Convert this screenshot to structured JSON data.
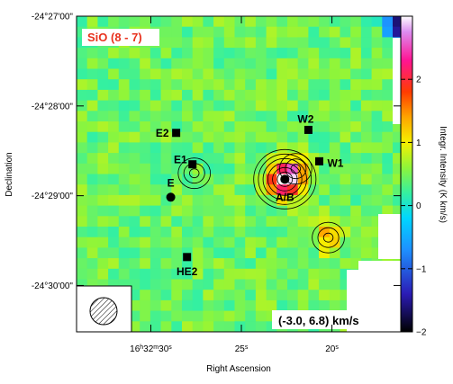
{
  "chart_data": {
    "type": "heatmap",
    "title": "SiO (8 - 7)",
    "annotation": "(-3.0, 6.8) km/s",
    "xlabel": "Right Ascension",
    "ylabel": "Declination",
    "x_tick_labels": [
      "16h32m30s",
      "25s",
      "20s"
    ],
    "y_tick_labels": [
      "-24°27'00\"",
      "-24°28'00\"",
      "-24°29'00\"",
      "-24°30'00\""
    ],
    "colorbar": {
      "label": "Integr. Intensity (K km/s)",
      "range": [
        -2,
        3
      ],
      "ticks": [
        -2,
        -1,
        0,
        1,
        2
      ]
    },
    "sources": [
      {
        "name": "E2",
        "ra_s": 28.6,
        "dec_s": -78
      },
      {
        "name": "W2",
        "ra_s": 21.3,
        "dec_s": -76
      },
      {
        "name": "E1",
        "ra_s": 27.7,
        "dec_s": -99
      },
      {
        "name": "W1",
        "ra_s": 20.7,
        "dec_s": -97
      },
      {
        "name": "A/B",
        "ra_s": 22.6,
        "dec_s": -109
      },
      {
        "name": "E",
        "ra_s": 28.9,
        "dec_s": -121
      },
      {
        "name": "HE2",
        "ra_s": 28.0,
        "dec_s": -161
      }
    ],
    "intensity_features": [
      {
        "ra_s": 22.6,
        "dec_s": -109,
        "value": 3.0
      },
      {
        "ra_s": 22.0,
        "dec_s": -102,
        "value": 1.2
      },
      {
        "ra_s": 20.2,
        "dec_s": -148,
        "value": 1.3
      },
      {
        "ra_s": 27.6,
        "dec_s": -105,
        "value": 0.4
      },
      {
        "ra_s": 16.2,
        "dec_s": -5,
        "value": -2.0
      }
    ],
    "colors": {
      "background_map": "#6bf040",
      "peak": "#ff1493",
      "inner": "#ff6a00",
      "outer": "#ffe000",
      "title": "#e8321e"
    }
  }
}
